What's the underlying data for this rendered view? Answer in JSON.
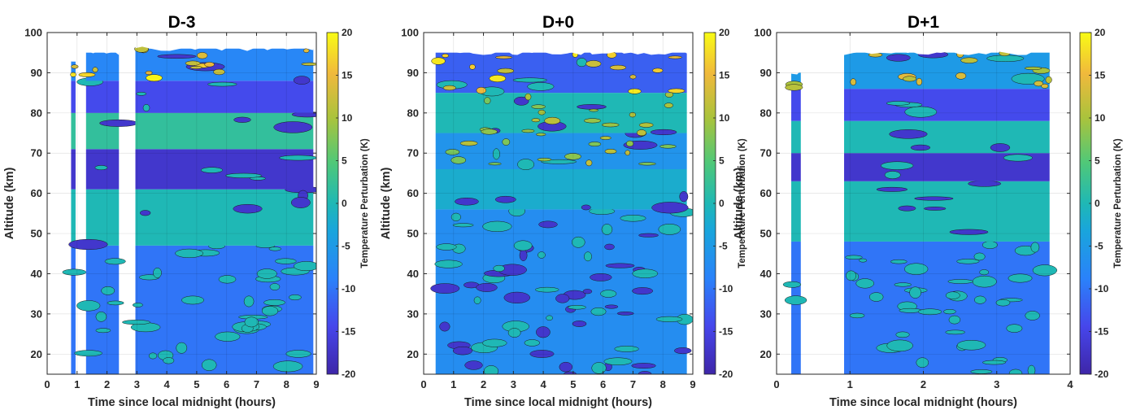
{
  "figure": {
    "panels": [
      {
        "title": "D-3",
        "xlabel": "Time since local midnight (hours)",
        "ylabel": "Altitude (km)",
        "colorbar_label": "Temperature Perturbation (K)",
        "x_ticks": [
          "0",
          "1",
          "2",
          "3",
          "4",
          "5",
          "6",
          "7",
          "8",
          "9"
        ],
        "y_ticks": [
          "20",
          "30",
          "40",
          "50",
          "60",
          "70",
          "80",
          "90",
          "100"
        ],
        "cb_ticks": [
          "-20",
          "-15",
          "-10",
          "-5",
          "0",
          "5",
          "10",
          "15",
          "20"
        ]
      },
      {
        "title": "D+0",
        "xlabel": "Time since local midnight (hours)",
        "ylabel": "Altitude (km)",
        "colorbar_label": "Temperature Perturbation (K)",
        "x_ticks": [
          "0",
          "1",
          "2",
          "3",
          "4",
          "5",
          "6",
          "7",
          "8",
          "9"
        ],
        "y_ticks": [
          "20",
          "30",
          "40",
          "50",
          "60",
          "70",
          "80",
          "90",
          "100"
        ],
        "cb_ticks": [
          "-20",
          "-15",
          "-10",
          "-5",
          "0",
          "5",
          "10",
          "15",
          "20"
        ]
      },
      {
        "title": "D+1",
        "xlabel": "Time since local midnight (hours)",
        "ylabel": "Altitude (km)",
        "colorbar_label": "Temperature Perturbation (K)",
        "x_ticks": [
          "0",
          "1",
          "2",
          "3",
          "4"
        ],
        "y_ticks": [
          "20",
          "30",
          "40",
          "50",
          "60",
          "70",
          "80",
          "90",
          "100"
        ],
        "cb_ticks": [
          "-20",
          "-15",
          "-10",
          "-5",
          "0",
          "5",
          "10",
          "15",
          "20"
        ]
      }
    ]
  },
  "chart_data": [
    {
      "type": "heatmap",
      "title": "D-3",
      "xlabel": "Time since local midnight (hours)",
      "ylabel": "Altitude (km)",
      "colorbar_label": "Temperature Perturbation (K)",
      "xlim": [
        0,
        9
      ],
      "ylim": [
        15,
        100
      ],
      "clim": [
        -20,
        20
      ],
      "colormap": "parula",
      "grid": true,
      "colors": {
        "low": "#3e26a8",
        "mid": "#1fb8b5",
        "high": "#f9fb15"
      },
      "data_coverage": [
        {
          "x": [
            0.8,
            0.95
          ],
          "top": 93
        },
        {
          "x": [
            1.3,
            2.4
          ],
          "top": 95
        },
        {
          "x": [
            2.95,
            8.9
          ],
          "top": 96
        }
      ],
      "bands": [
        {
          "y": [
            15,
            47
          ],
          "value": -10,
          "pattern": "patchy"
        },
        {
          "y": [
            47,
            61
          ],
          "value": 0
        },
        {
          "y": [
            61,
            71
          ],
          "value": -17
        },
        {
          "y": [
            71,
            80
          ],
          "value": 2
        },
        {
          "y": [
            80,
            88
          ],
          "value": -14
        },
        {
          "y": [
            88,
            96
          ],
          "value": -8,
          "peak": 20
        }
      ]
    },
    {
      "type": "heatmap",
      "title": "D+0",
      "xlabel": "Time since local midnight (hours)",
      "ylabel": "Altitude (km)",
      "colorbar_label": "Temperature Perturbation (K)",
      "xlim": [
        0,
        9
      ],
      "ylim": [
        15,
        100
      ],
      "clim": [
        -20,
        20
      ],
      "colormap": "parula",
      "grid": true,
      "colors": {
        "low": "#3e26a8",
        "mid": "#1fb8b5",
        "high": "#f9fb15"
      },
      "data_coverage": [
        {
          "x": [
            0.4,
            8.8
          ],
          "top": 95
        }
      ],
      "bands": [
        {
          "y": [
            15,
            56
          ],
          "value": -7,
          "pattern": "patchy"
        },
        {
          "y": [
            56,
            66
          ],
          "value": -2
        },
        {
          "y": [
            66,
            75
          ],
          "value": -6,
          "peak": 12
        },
        {
          "y": [
            75,
            85
          ],
          "value": 0,
          "peak": 12
        },
        {
          "y": [
            85,
            95
          ],
          "value": -12,
          "peak": 20
        }
      ]
    },
    {
      "type": "heatmap",
      "title": "D+1",
      "xlabel": "Time since local midnight (hours)",
      "ylabel": "Altitude (km)",
      "colorbar_label": "Temperature Perturbation (K)",
      "xlim": [
        0,
        4
      ],
      "ylim": [
        15,
        100
      ],
      "clim": [
        -20,
        20
      ],
      "colormap": "parula",
      "grid": true,
      "colors": {
        "low": "#3e26a8",
        "mid": "#1fb8b5",
        "high": "#f9fb15"
      },
      "data_coverage": [
        {
          "x": [
            0.2,
            0.33
          ],
          "top": 90
        },
        {
          "x": [
            0.92,
            3.72
          ],
          "top": 95
        }
      ],
      "bands": [
        {
          "y": [
            15,
            48
          ],
          "value": -10,
          "pattern": "patchy"
        },
        {
          "y": [
            48,
            63
          ],
          "value": 0
        },
        {
          "y": [
            63,
            70
          ],
          "value": -17
        },
        {
          "y": [
            70,
            78
          ],
          "value": 0
        },
        {
          "y": [
            78,
            86
          ],
          "value": -14
        },
        {
          "y": [
            86,
            95
          ],
          "value": -5,
          "peak": 15
        }
      ]
    }
  ]
}
